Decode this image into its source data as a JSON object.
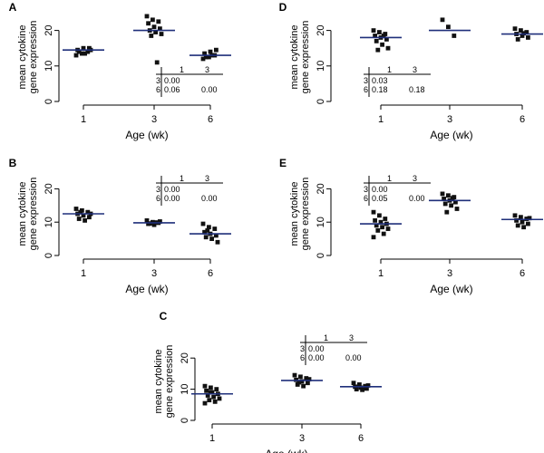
{
  "chart_data": [
    {
      "panel": "A",
      "type": "scatter",
      "ylabel_line1": "mean cytokine",
      "ylabel_line2": "gene expression",
      "xlabel": "Age (wk)",
      "categories": [
        "1",
        "3",
        "6"
      ],
      "yticks": [
        "0",
        "10",
        "20"
      ],
      "ylim": [
        0,
        25
      ],
      "means": [
        14.5,
        20,
        13
      ],
      "points": [
        [
          13,
          13.5,
          14,
          14.5,
          15,
          15,
          14,
          13.5,
          14.5
        ],
        [
          24,
          23,
          22.5,
          22,
          21,
          20.5,
          20,
          19.5,
          19,
          18.5,
          11
        ],
        [
          12,
          12.5,
          13,
          13.5,
          14,
          14.5,
          12.5,
          13
        ]
      ],
      "table": {
        "cols": [
          "1",
          "3"
        ],
        "rows": [
          {
            "label": "3",
            "values": [
              "0.00",
              ""
            ]
          },
          {
            "label": "6",
            "values": [
              "0.06",
              "0.00"
            ]
          }
        ]
      }
    },
    {
      "panel": "B",
      "type": "scatter",
      "ylabel_line1": "mean cytokine",
      "ylabel_line2": "gene expression",
      "xlabel": "Age (wk)",
      "categories": [
        "1",
        "3",
        "6"
      ],
      "yticks": [
        "0",
        "10",
        "20"
      ],
      "ylim": [
        0,
        25
      ],
      "means": [
        12.5,
        9.8,
        6.5
      ],
      "points": [
        [
          14,
          13.5,
          13,
          12.5,
          12,
          11.5,
          11,
          10.5,
          12.5,
          13
        ],
        [
          10.5,
          10,
          9.8,
          9.5,
          9.2,
          10.2,
          9.6,
          9.9
        ],
        [
          9.5,
          8.5,
          8,
          7,
          6.5,
          6,
          5.5,
          5,
          4,
          7.5
        ]
      ],
      "table": {
        "cols": [
          "1",
          "3"
        ],
        "rows": [
          {
            "label": "3",
            "values": [
              "0.00",
              ""
            ]
          },
          {
            "label": "6",
            "values": [
              "0.00",
              "0.00"
            ]
          }
        ]
      }
    },
    {
      "panel": "C",
      "type": "scatter",
      "ylabel_line1": "mean cytokine",
      "ylabel_line2": "gene expression",
      "xlabel": "Age (wk)",
      "categories": [
        "1",
        "3",
        "6"
      ],
      "yticks": [
        "0",
        "10",
        "20"
      ],
      "ylim": [
        0,
        25
      ],
      "means": [
        8.5,
        12.8,
        10.8
      ],
      "points": [
        [
          11,
          10.5,
          10,
          9.5,
          9,
          8.5,
          8,
          7.5,
          7,
          6.5,
          6,
          5.5,
          9
        ],
        [
          14.5,
          14,
          13.5,
          13,
          12.5,
          12,
          11.5,
          11,
          13.2,
          12.2
        ],
        [
          12,
          11.5,
          11,
          10.8,
          10.5,
          10.2,
          10,
          9.8,
          11.2
        ]
      ],
      "table": {
        "cols": [
          "1",
          "3"
        ],
        "rows": [
          {
            "label": "3",
            "values": [
              "0.00",
              ""
            ]
          },
          {
            "label": "6",
            "values": [
              "0.00",
              "0.00"
            ]
          }
        ]
      }
    },
    {
      "panel": "D",
      "type": "scatter",
      "ylabel_line1": "mean cytokine",
      "ylabel_line2": "gene expression",
      "xlabel": "Age (wk)",
      "categories": [
        "1",
        "3",
        "6"
      ],
      "yticks": [
        "0",
        "10",
        "20"
      ],
      "ylim": [
        0,
        25
      ],
      "means": [
        18,
        20,
        19
      ],
      "points": [
        [
          20,
          19.5,
          19,
          18.5,
          18,
          17.5,
          17,
          16,
          15,
          14.5,
          18.5
        ],
        [
          23,
          21,
          18.5
        ],
        [
          20.5,
          20,
          19.5,
          19,
          18.5,
          18,
          17.5,
          19.2
        ]
      ],
      "table": {
        "cols": [
          "1",
          "3"
        ],
        "rows": [
          {
            "label": "3",
            "values": [
              "0.03",
              ""
            ]
          },
          {
            "label": "6",
            "values": [
              "0.18",
              "0.18"
            ]
          }
        ]
      }
    },
    {
      "panel": "E",
      "type": "scatter",
      "ylabel_line1": "mean cytokine",
      "ylabel_line2": "gene expression",
      "xlabel": "Age (wk)",
      "categories": [
        "1",
        "3",
        "6"
      ],
      "yticks": [
        "0",
        "10",
        "20"
      ],
      "ylim": [
        0,
        25
      ],
      "means": [
        9.5,
        16.5,
        10.8
      ],
      "points": [
        [
          13,
          12,
          11,
          10.5,
          10,
          9.5,
          9,
          8.5,
          8,
          7.5,
          6.5,
          5.5
        ],
        [
          18.5,
          18,
          17.5,
          17,
          16.5,
          16,
          15.5,
          15,
          14,
          13,
          17.2
        ],
        [
          12,
          11.5,
          11,
          10.5,
          10,
          9.5,
          9,
          8.5,
          11.2
        ]
      ],
      "table": {
        "cols": [
          "1",
          "3"
        ],
        "rows": [
          {
            "label": "3",
            "values": [
              "0.00",
              ""
            ]
          },
          {
            "label": "6",
            "values": [
              "0.05",
              "0.00"
            ]
          }
        ]
      }
    }
  ]
}
